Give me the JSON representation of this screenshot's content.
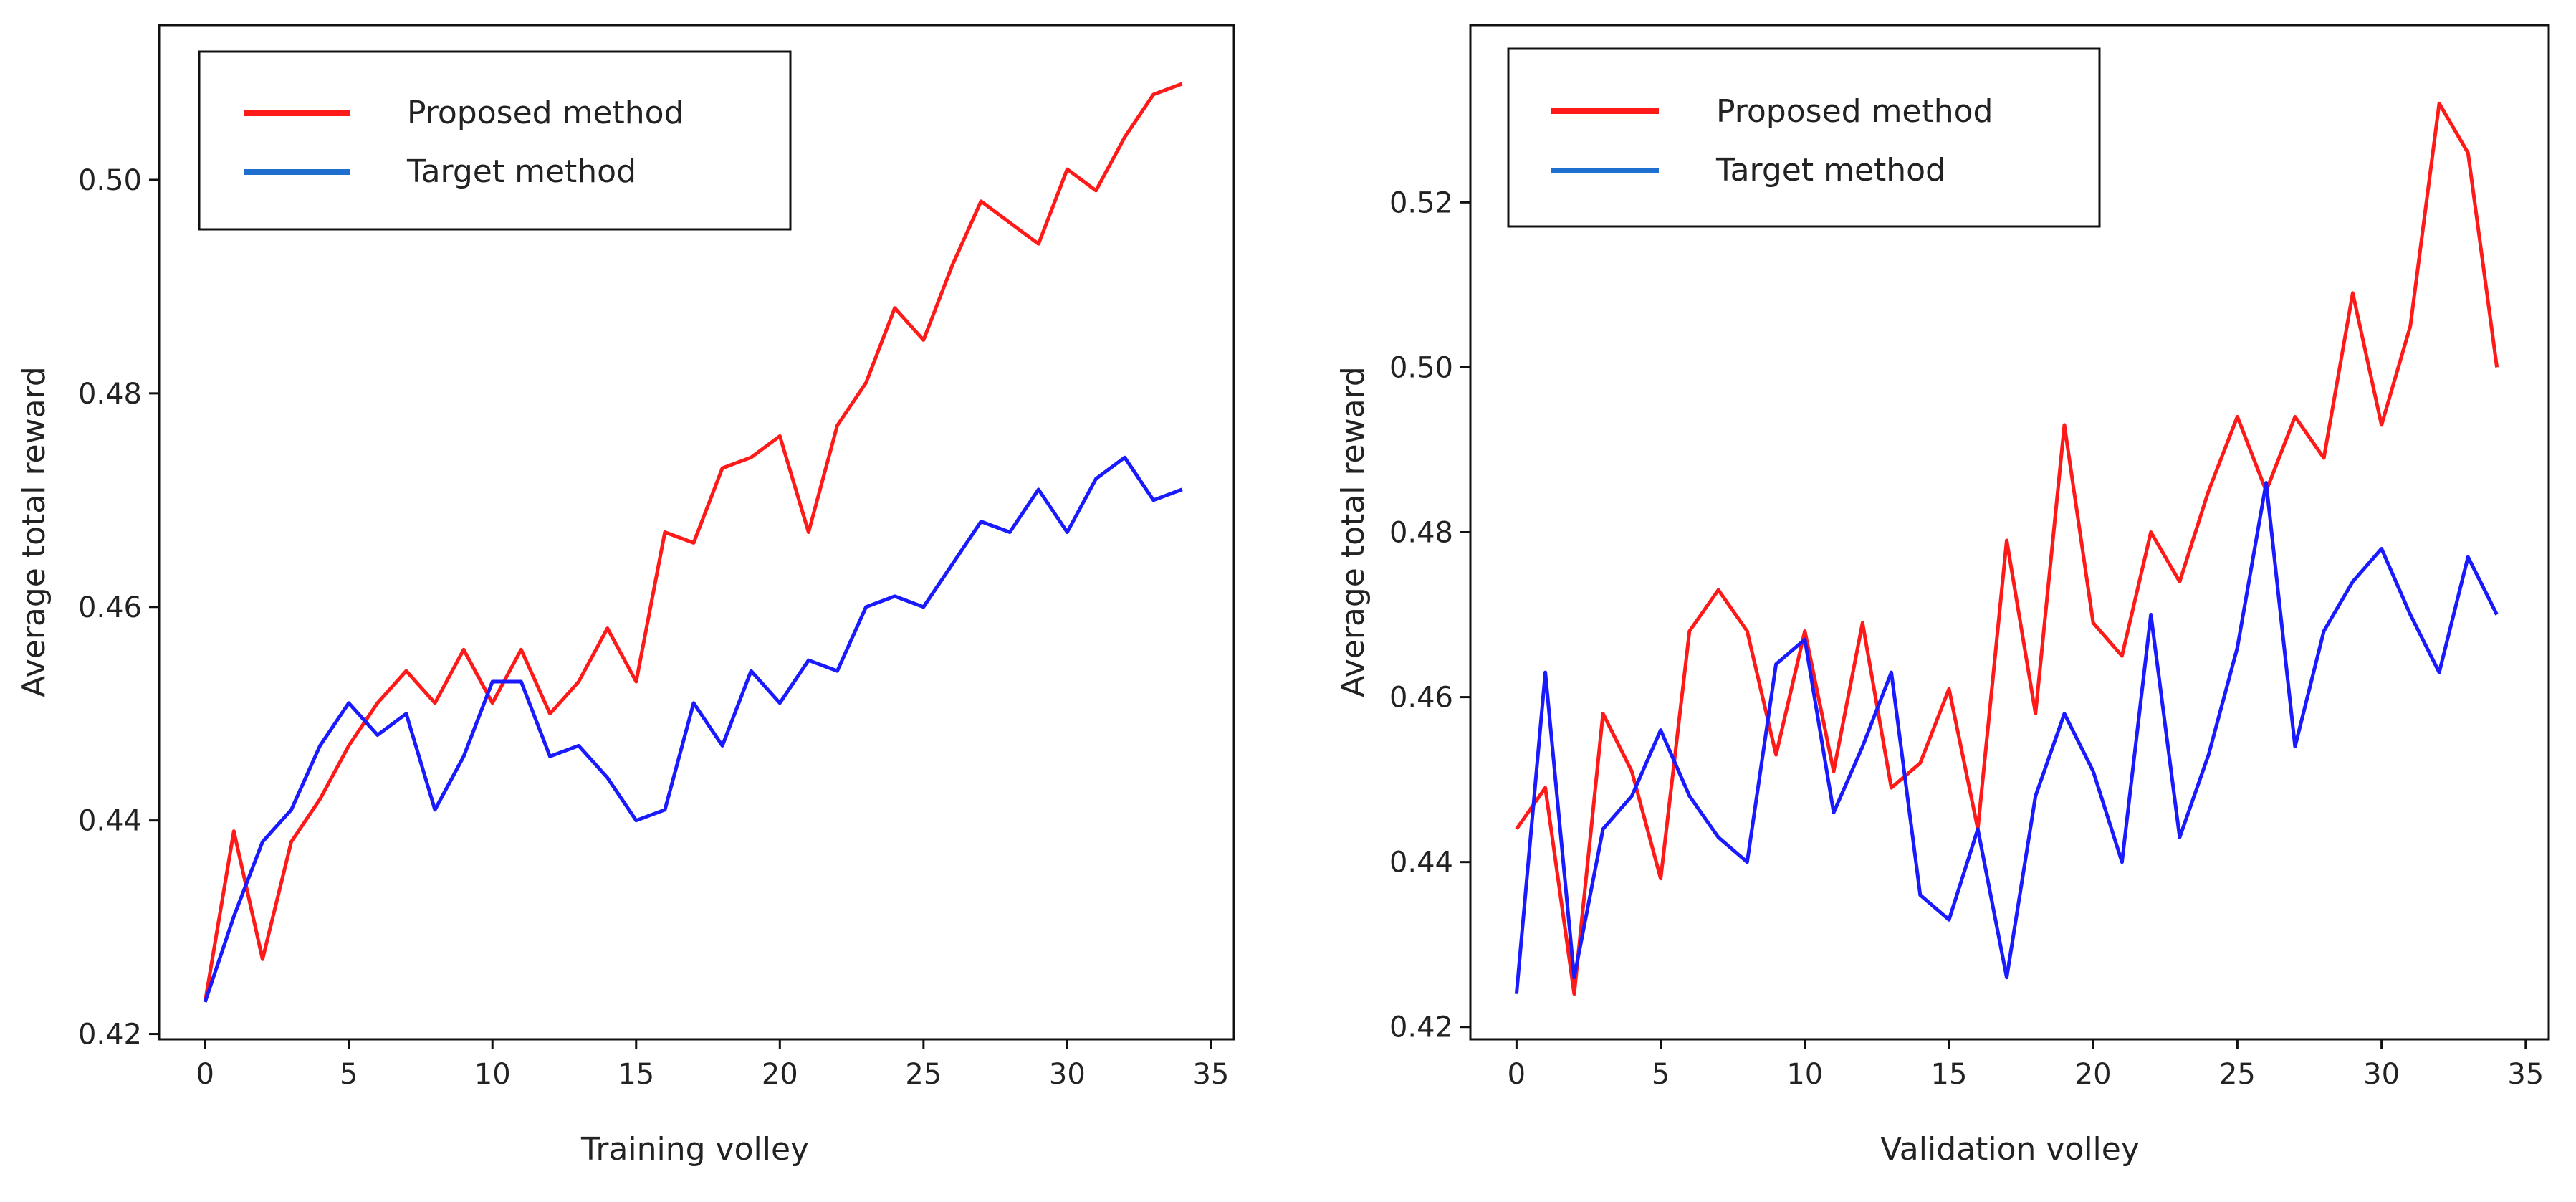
{
  "figure": {
    "description_panels": 2
  },
  "legend_colors": {
    "proposed": "#ff1a1a",
    "target": "#1a1aff",
    "proposed_legend": "#ff1a1a",
    "target_legend": "#1f6fd0"
  },
  "chart_data": [
    {
      "type": "line",
      "title": "",
      "xlabel": "Training volley",
      "ylabel": "Average total reward",
      "xlim": [
        -1.6,
        35.8
      ],
      "ylim": [
        0.4195,
        0.5145
      ],
      "xticks": [
        0,
        5,
        10,
        15,
        20,
        25,
        30,
        35
      ],
      "yticks": [
        0.42,
        0.44,
        0.46,
        0.48,
        0.5
      ],
      "ytick_labels": [
        "0.42",
        "0.44",
        "0.46",
        "0.48",
        "0.50"
      ],
      "xtick_labels": [
        "0",
        "5",
        "10",
        "15",
        "20",
        "25",
        "30",
        "35"
      ],
      "legend_position": "top-left",
      "grid": false,
      "x": [
        0,
        1,
        2,
        3,
        4,
        5,
        6,
        7,
        8,
        9,
        10,
        11,
        12,
        13,
        14,
        15,
        16,
        17,
        18,
        19,
        20,
        21,
        22,
        23,
        24,
        25,
        26,
        27,
        28,
        29,
        30,
        31,
        32,
        33,
        34
      ],
      "series": [
        {
          "name": "Proposed method",
          "color": "#ff1a1a",
          "values": [
            0.423,
            0.439,
            0.427,
            0.438,
            0.442,
            0.447,
            0.451,
            0.454,
            0.451,
            0.456,
            0.451,
            0.456,
            0.45,
            0.453,
            0.458,
            0.453,
            0.467,
            0.466,
            0.473,
            0.474,
            0.476,
            0.467,
            0.477,
            0.481,
            0.488,
            0.485,
            0.492,
            0.498,
            0.496,
            0.494,
            0.501,
            0.499,
            0.504,
            0.508,
            0.509
          ]
        },
        {
          "name": "Target method",
          "color": "#1a1aff",
          "values": [
            0.423,
            0.431,
            0.438,
            0.441,
            0.447,
            0.451,
            0.448,
            0.45,
            0.441,
            0.446,
            0.453,
            0.453,
            0.446,
            0.447,
            0.444,
            0.44,
            0.441,
            0.451,
            0.447,
            0.454,
            0.451,
            0.455,
            0.454,
            0.46,
            0.461,
            0.46,
            0.464,
            0.468,
            0.467,
            0.471,
            0.467,
            0.472,
            0.474,
            0.47,
            0.471
          ]
        }
      ]
    },
    {
      "type": "line",
      "title": "",
      "xlabel": "Validation volley",
      "ylabel": "Average total reward",
      "xlim": [
        -1.6,
        35.8
      ],
      "ylim": [
        0.4185,
        0.5415
      ],
      "xticks": [
        0,
        5,
        10,
        15,
        20,
        25,
        30,
        35
      ],
      "yticks": [
        0.42,
        0.44,
        0.46,
        0.48,
        0.5,
        0.52
      ],
      "ytick_labels": [
        "0.42",
        "0.44",
        "0.46",
        "0.48",
        "0.50",
        "0.52"
      ],
      "xtick_labels": [
        "0",
        "5",
        "10",
        "15",
        "20",
        "25",
        "30",
        "35"
      ],
      "legend_position": "top-left",
      "grid": false,
      "x": [
        0,
        1,
        2,
        3,
        4,
        5,
        6,
        7,
        8,
        9,
        10,
        11,
        12,
        13,
        14,
        15,
        16,
        17,
        18,
        19,
        20,
        21,
        22,
        23,
        24,
        25,
        26,
        27,
        28,
        29,
        30,
        31,
        32,
        33,
        34
      ],
      "series": [
        {
          "name": "Proposed method",
          "color": "#ff1a1a",
          "values": [
            0.444,
            0.449,
            0.424,
            0.458,
            0.451,
            0.438,
            0.468,
            0.473,
            0.468,
            0.453,
            0.468,
            0.451,
            0.469,
            0.449,
            0.452,
            0.461,
            0.444,
            0.479,
            0.458,
            0.493,
            0.469,
            0.465,
            0.48,
            0.474,
            0.485,
            0.494,
            0.485,
            0.494,
            0.489,
            0.509,
            0.493,
            0.505,
            0.532,
            0.526,
            0.5
          ]
        },
        {
          "name": "Target method",
          "color": "#1a1aff",
          "values": [
            0.424,
            0.463,
            0.426,
            0.444,
            0.448,
            0.456,
            0.448,
            0.443,
            0.44,
            0.464,
            0.467,
            0.446,
            0.454,
            0.463,
            0.436,
            0.433,
            0.444,
            0.426,
            0.448,
            0.458,
            0.451,
            0.44,
            0.47,
            0.443,
            0.453,
            0.466,
            0.486,
            0.454,
            0.468,
            0.474,
            0.478,
            0.47,
            0.463,
            0.477,
            0.47
          ]
        }
      ]
    }
  ]
}
